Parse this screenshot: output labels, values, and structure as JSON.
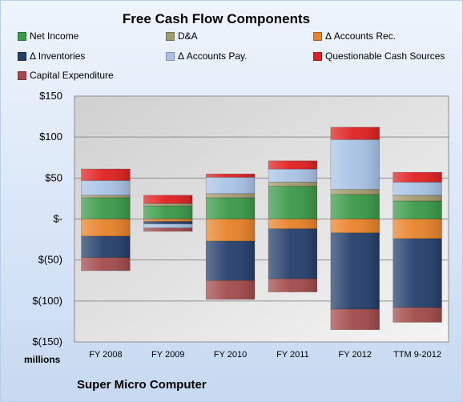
{
  "chart_data": {
    "type": "bar",
    "stacked": true,
    "title": "Free Cash Flow Components",
    "units_label": "millions",
    "company": "Super Micro Computer",
    "categories": [
      "FY 2008",
      "FY 2009",
      "FY 2010",
      "FY 2011",
      "FY 2012",
      "TTM 9-2012"
    ],
    "ylim": [
      -150,
      150
    ],
    "yticks": [
      150,
      100,
      50,
      0,
      -50,
      -100,
      -150
    ],
    "ytick_labels": [
      "$150",
      "$100",
      "$50",
      "$-",
      "$(50)",
      "$(100)",
      "$(150)"
    ],
    "grid": true,
    "legend_position": "top",
    "series": [
      {
        "name": "Net Income",
        "color": "#3a9a49",
        "values": [
          26,
          16,
          26,
          40,
          30,
          22
        ]
      },
      {
        "name": "D&A",
        "color": "#a39a6c",
        "values": [
          3,
          3,
          5,
          5,
          6,
          7
        ]
      },
      {
        "name": "Δ Accounts Rec.",
        "color": "#e8822a",
        "values": [
          -21,
          -3,
          -27,
          -12,
          -17,
          -24
        ]
      },
      {
        "name": "Δ Inventories",
        "color": "#253f6b",
        "values": [
          -26,
          -3,
          -48,
          -61,
          -93,
          -84
        ]
      },
      {
        "name": "Δ Accounts Pay.",
        "color": "#a9c3e6",
        "values": [
          18,
          -5,
          20,
          16,
          61,
          16
        ]
      },
      {
        "name": "Questionable Cash Sources",
        "color": "#e02020",
        "values": [
          14,
          10,
          4,
          10,
          15,
          12
        ]
      },
      {
        "name": "Capital Expenditure",
        "color": "#a24a4a",
        "values": [
          -16,
          -4,
          -23,
          -16,
          -25,
          -18
        ]
      }
    ]
  }
}
